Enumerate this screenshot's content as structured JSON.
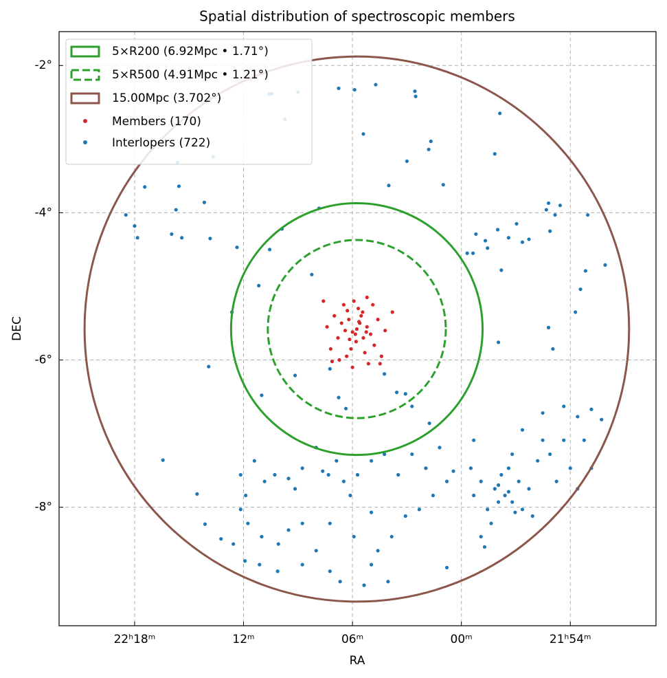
{
  "chart_data": {
    "type": "scatter",
    "title": "Spatial distribution of spectroscopic members",
    "x_label": "RA",
    "y_label": "DEC",
    "xlim": [
      335.54,
      327.32
    ],
    "ylim": [
      -9.61,
      -1.54
    ],
    "xticks": [
      {
        "value": 334.5,
        "label": "22ʰ18ᵐ"
      },
      {
        "value": 333,
        "label": "12ᵐ"
      },
      {
        "value": 331.5,
        "label": "06ᵐ"
      },
      {
        "value": 330,
        "label": "00ᵐ"
      },
      {
        "value": 328.5,
        "label": "21ʰ54ᵐ"
      }
    ],
    "yticks": [
      {
        "value": -2,
        "label": "-2°"
      },
      {
        "value": -4,
        "label": "-4°"
      },
      {
        "value": -6,
        "label": "-6°"
      },
      {
        "value": -8,
        "label": "-8°"
      }
    ],
    "grid": true,
    "legend": "upper left",
    "center": [
      331.44,
      -5.58
    ],
    "circles": [
      {
        "name": "5×R200 (6.92Mpc • 1.71°)",
        "color": "#2ca02c",
        "style": "solid",
        "radius": 1.71
      },
      {
        "name": "5×R500 (4.91Mpc • 1.21°)",
        "color": "#2ca02c",
        "style": "dashed",
        "radius": 1.21
      },
      {
        "name": "15.00Mpc (3.702°)",
        "color": "#8c564b",
        "style": "solid",
        "radius": 3.702
      }
    ],
    "series": [
      {
        "name": "Members (170)",
        "color": "#d62728",
        "x": [
          331.44,
          331.4,
          331.5,
          331.35,
          331.55,
          331.3,
          331.6,
          331.45,
          331.38,
          331.52,
          331.25,
          331.65,
          331.42,
          331.58,
          331.2,
          331.7,
          331.33,
          331.48,
          331.15,
          331.75,
          331.28,
          331.62,
          331.1,
          331.8,
          331.36,
          331.5,
          331.22,
          331.68,
          331.05,
          331.85,
          331.46,
          331.41,
          331.54,
          331.31,
          331.12,
          331.78,
          331.57,
          330.95,
          331.9,
          331.3
        ],
        "y": [
          -5.58,
          -5.5,
          -5.62,
          -5.7,
          -5.45,
          -5.55,
          -5.6,
          -5.75,
          -5.4,
          -5.85,
          -5.65,
          -5.5,
          -5.3,
          -5.95,
          -5.8,
          -5.7,
          -5.9,
          -5.2,
          -5.45,
          -5.4,
          -6.05,
          -5.25,
          -5.95,
          -5.85,
          -5.35,
          -6.1,
          -5.25,
          -6.0,
          -5.6,
          -5.55,
          -5.65,
          -5.48,
          -5.72,
          -5.62,
          -6.05,
          -6.02,
          -5.33,
          -5.35,
          -5.2,
          -5.15
        ]
      },
      {
        "name": "Interlopers (722)",
        "color": "#1f77b4",
        "x": [
          331.69,
          331.47,
          331.18,
          330.64,
          330.63,
          332.65,
          332.61,
          332.25,
          332.43,
          331.35,
          330.45,
          330.42,
          330.75,
          329.47,
          329.54,
          331.0,
          330.25,
          333.91,
          333.89,
          333.42,
          334.36,
          333.54,
          333.93,
          334.62,
          334.5,
          334.46,
          333.99,
          333.85,
          333.46,
          333.09,
          332.47,
          332.64,
          331.96,
          332.06,
          332.79,
          333.16,
          333.48,
          332.75,
          328.8,
          328.64,
          328.83,
          328.71,
          328.26,
          329.24,
          329.5,
          329.35,
          329.16,
          329.67,
          329.64,
          329.8,
          329.92,
          329.45,
          328.78,
          329.07,
          328.02,
          328.29,
          328.36,
          328.43,
          328.8,
          328.74,
          329.49,
          329.84,
          332.29,
          331.69,
          331.06,
          330.89,
          330.77,
          330.68,
          330.44,
          331.59,
          331.81,
          334.11,
          333.64,
          333.53,
          333.31,
          333.14,
          333.04,
          332.97,
          332.85,
          332.71,
          332.57,
          332.38,
          332.29,
          332.19,
          332.0,
          331.91,
          331.83,
          331.72,
          331.62,
          331.53,
          331.43,
          331.24,
          331.06,
          330.87,
          330.68,
          330.49,
          330.3,
          330.2,
          330.11,
          333.04,
          332.94,
          332.75,
          332.52,
          332.38,
          332.19,
          332.0,
          331.81,
          331.67,
          331.48,
          331.34,
          331.24,
          331.15,
          330.96,
          330.77,
          330.58,
          330.39,
          330.2,
          331.24,
          331.81,
          332.19,
          332.98,
          332.78,
          331.01,
          332.53,
          329.4,
          329.54,
          329.3,
          329.64,
          329.21,
          329.73,
          329.45,
          329.16,
          329.83,
          329.35,
          329.59,
          329.07,
          329.87,
          329.3,
          329.02,
          329.73,
          329.83,
          329.16,
          328.88,
          328.78,
          328.59,
          328.88,
          328.59,
          328.4,
          328.21,
          328.07,
          328.31,
          328.5,
          328.69,
          328.21,
          328.4,
          328.95,
          329.68,
          329.49,
          329.35,
          329.26,
          329.49
        ],
        "y": [
          -2.31,
          -2.33,
          -2.26,
          -2.35,
          -2.42,
          -2.39,
          -2.38,
          -2.36,
          -2.73,
          -2.93,
          -3.14,
          -3.03,
          -3.3,
          -2.65,
          -3.2,
          -3.63,
          -3.62,
          -3.32,
          -3.64,
          -3.24,
          -3.65,
          -3.86,
          -3.96,
          -4.03,
          -4.18,
          -4.34,
          -4.29,
          -4.34,
          -4.35,
          -4.47,
          -4.22,
          -4.5,
          -3.94,
          -4.84,
          -4.99,
          -5.35,
          -6.09,
          -6.48,
          -3.87,
          -3.9,
          -3.96,
          -4.03,
          -4.03,
          -4.15,
          -4.23,
          -4.34,
          -4.4,
          -4.38,
          -4.48,
          -4.29,
          -4.55,
          -4.78,
          -4.25,
          -4.36,
          -4.71,
          -4.79,
          -5.04,
          -5.35,
          -5.56,
          -5.85,
          -5.76,
          -4.55,
          -6.21,
          -6.51,
          -6.19,
          -6.44,
          -6.46,
          -6.63,
          -6.86,
          -6.66,
          -6.12,
          -7.36,
          -7.82,
          -8.23,
          -8.43,
          -8.5,
          -7.56,
          -7.84,
          -7.37,
          -7.65,
          -7.56,
          -7.61,
          -7.75,
          -7.47,
          -7.19,
          -7.51,
          -7.56,
          -7.37,
          -7.65,
          -7.84,
          -7.56,
          -7.37,
          -7.28,
          -7.56,
          -7.28,
          -7.47,
          -7.19,
          -7.65,
          -7.51,
          -8.03,
          -8.22,
          -8.4,
          -8.5,
          -8.31,
          -8.78,
          -8.59,
          -8.87,
          -9.01,
          -8.4,
          -9.06,
          -8.78,
          -8.59,
          -8.4,
          -8.12,
          -8.03,
          -7.84,
          -8.82,
          -8.07,
          -8.22,
          -8.22,
          -8.73,
          -8.78,
          -9.01,
          -8.87,
          -7.84,
          -7.75,
          -7.93,
          -8.03,
          -7.65,
          -7.65,
          -7.56,
          -8.03,
          -7.84,
          -7.47,
          -8.22,
          -7.75,
          -7.47,
          -7.28,
          -8.12,
          -8.4,
          -7.09,
          -6.95,
          -7.09,
          -7.28,
          -7.09,
          -6.72,
          -6.63,
          -6.77,
          -6.67,
          -6.81,
          -7.09,
          -7.47,
          -7.65,
          -7.47,
          -7.75,
          -7.37,
          -8.54,
          -7.93,
          -7.79,
          -8.07,
          -7.7
        ]
      }
    ]
  }
}
